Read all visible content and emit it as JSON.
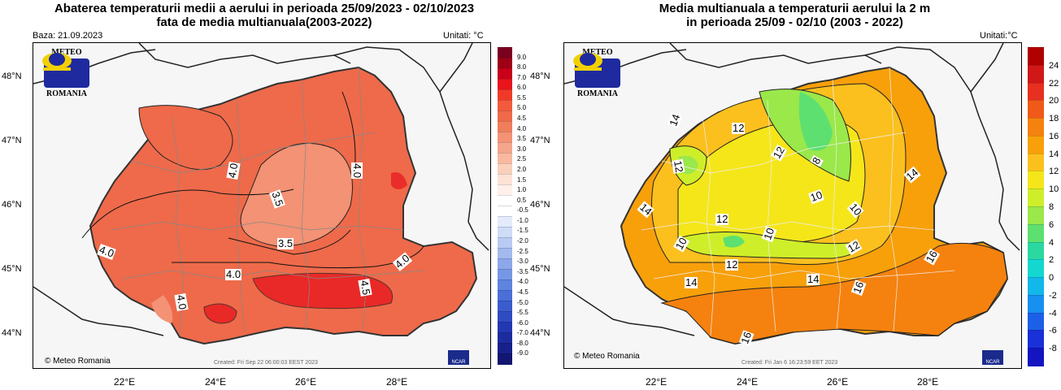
{
  "left": {
    "title_line1": "Abaterea temperaturii medii a aerului in perioada 25/09/2023 - 02/10/2023",
    "title_line2": "fata de media multianuala(2003-2022)",
    "base": "Baza: 21.09.2023",
    "units": "Unitati: °C",
    "lat_labels": [
      "48°N",
      "47°N",
      "46°N",
      "45°N",
      "44°N"
    ],
    "lon_labels": [
      "22°E",
      "24°E",
      "26°E",
      "28°E"
    ],
    "contour_labels": [
      "4.0",
      "3.5",
      "4.0",
      "4.0",
      "3.5",
      "4.0",
      "4.0",
      "4.5",
      "4.0"
    ],
    "copyright": "© Meteo Romania",
    "created": "Created: Fri Sep 22 06:00:03 EEST 2023",
    "colorbar_labels": [
      "9.0",
      "8.0",
      "7.0",
      "6.0",
      "5.5",
      "5.0",
      "4.5",
      "4.0",
      "3.5",
      "3.0",
      "2.5",
      "2.0",
      "1.5",
      "1.0",
      "0.5",
      "-0.5",
      "-1.0",
      "-1.5",
      "-2.0",
      "-2.5",
      "-3.0",
      "-3.5",
      "-4.0",
      "-4.5",
      "-5.0",
      "-5.5",
      "-6.0",
      "-7.0",
      "-8.0",
      "-9.0"
    ],
    "colorbar_colors": [
      "#7a0020",
      "#9e0016",
      "#c8001a",
      "#e8141c",
      "#f03a28",
      "#f35a3c",
      "#ee6a4a",
      "#f07e5c",
      "#f39274",
      "#f5a58c",
      "#f8b9a0",
      "#fad0bc",
      "#fde3d6",
      "#fff0ea",
      "#ffffff",
      "#ffffff",
      "#e4ecfb",
      "#cfdcf6",
      "#b9cbf2",
      "#a3baee",
      "#8ca8ea",
      "#7697e6",
      "#5e84e0",
      "#4a70d8",
      "#3a5ccd",
      "#2f4bc2",
      "#2238b2",
      "#1c2c9e",
      "#17208a",
      "#121670"
    ]
  },
  "right": {
    "title_line1": "Media multianuala a temperaturii aerului la 2 m",
    "title_line2": "in perioada 25/09 - 02/10 (2003 - 2022)",
    "units": "Unitati:°C",
    "lat_labels": [
      "48°N",
      "47°N",
      "46°N",
      "45°N",
      "44°N"
    ],
    "lon_labels": [
      "22°E",
      "24°E",
      "26°E",
      "28°E"
    ],
    "contour_labels": [
      "14",
      "12",
      "12",
      "8",
      "12",
      "14",
      "10",
      "14",
      "12",
      "10",
      "10",
      "10",
      "12",
      "12",
      "14",
      "16",
      "14",
      "16",
      "16"
    ],
    "copyright": "© Meteo Romania",
    "created": "Created: Fri Jan 6 16:23:59 EET 2023",
    "colorbar_labels": [
      "24",
      "22",
      "20",
      "18",
      "16",
      "14",
      "12",
      "10",
      "8",
      "6",
      "4",
      "2",
      "0",
      "-2",
      "-4",
      "-6",
      "-8"
    ],
    "colorbar_colors": [
      "#b00000",
      "#d01818",
      "#e83020",
      "#f05a18",
      "#f5820e",
      "#f8a00a",
      "#fbc01e",
      "#f5e61a",
      "#cfee2a",
      "#9ae84a",
      "#5ee070",
      "#2ad8a0",
      "#14d8d0",
      "#12b8ea",
      "#1890f0",
      "#1c60e8",
      "#1a30d8",
      "#1414c0"
    ]
  },
  "logo": {
    "top": "METEO",
    "bottom": "ROMANIA"
  },
  "ncar": "NCAR"
}
